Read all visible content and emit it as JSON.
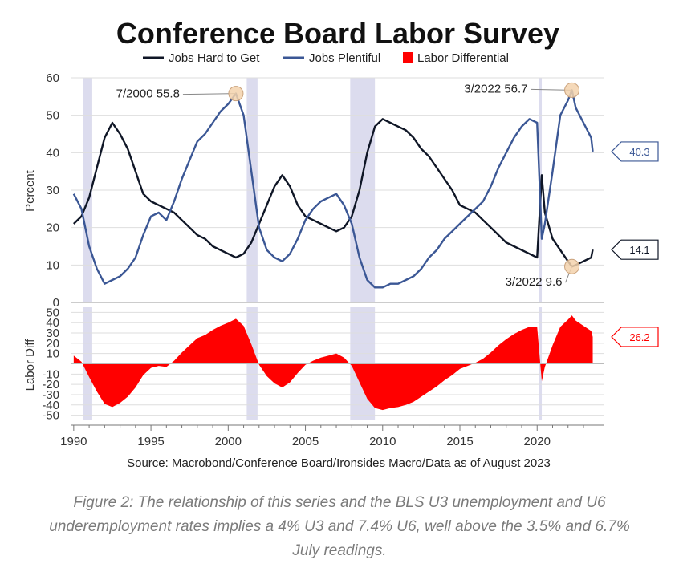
{
  "caption": "Figure 2: The relationship of this series and the BLS U3 unemployment and U6 underemployment rates implies a 4% U3 and 7.4% U6, well above the 3.5% and 6.7% July readings.",
  "chart_data": {
    "type": "line",
    "title": "Conference Board Labor Survey",
    "source": "Source: Macrobond/Conference Board/Ironsides Macro/Data as of August 2023",
    "colors": {
      "hard": "#0f1626",
      "plentiful": "#3b5795",
      "diff": "#ff0000",
      "recession": "#dcdcee",
      "annot_marker": "#f3d2ad"
    },
    "legend": {
      "placement": "top-center",
      "items": [
        "Jobs Hard to Get",
        "Jobs Plentiful",
        "Labor Differential"
      ]
    },
    "recessions": [
      [
        1990.6,
        1991.2
      ],
      [
        2001.2,
        2001.9
      ],
      [
        2007.9,
        2009.5
      ],
      [
        2020.1,
        2020.3
      ]
    ],
    "x_ticks": [
      "1990",
      "1995",
      "2000",
      "2005",
      "2010",
      "2015",
      "2020"
    ],
    "xlim": [
      1989.8,
      2024.3
    ],
    "top_panel": {
      "ylabel": "Percent",
      "ylim": [
        0,
        60
      ],
      "y_ticks": [
        "0",
        "10",
        "20",
        "30",
        "40",
        "50",
        "60"
      ],
      "grid": true,
      "series": [
        {
          "name": "Jobs Hard to Get",
          "x": [
            1990.0,
            1990.5,
            1991.0,
            1991.5,
            1992.0,
            1992.5,
            1993.0,
            1993.5,
            1994.0,
            1994.5,
            1995.0,
            1995.5,
            1996.0,
            1996.5,
            1997.0,
            1997.5,
            1998.0,
            1998.5,
            1999.0,
            1999.5,
            2000.0,
            2000.5,
            2001.0,
            2001.5,
            2002.0,
            2002.5,
            2003.0,
            2003.5,
            2004.0,
            2004.5,
            2005.0,
            2005.5,
            2006.0,
            2006.5,
            2007.0,
            2007.5,
            2008.0,
            2008.5,
            2009.0,
            2009.5,
            2010.0,
            2010.5,
            2011.0,
            2011.5,
            2012.0,
            2012.5,
            2013.0,
            2013.5,
            2014.0,
            2014.5,
            2015.0,
            2015.5,
            2016.0,
            2016.5,
            2017.0,
            2017.5,
            2018.0,
            2018.5,
            2019.0,
            2019.5,
            2020.0,
            2020.3,
            2020.5,
            2021.0,
            2021.5,
            2022.0,
            2022.25,
            2022.5,
            2023.0,
            2023.5,
            2023.6
          ],
          "y": [
            21,
            23,
            28,
            36,
            44,
            48,
            45,
            41,
            35,
            29,
            27,
            26,
            25,
            24,
            22,
            20,
            18,
            17,
            15,
            14,
            13,
            12,
            13,
            16,
            21,
            26,
            31,
            34,
            31,
            26,
            23,
            22,
            21,
            20,
            19,
            20,
            23,
            30,
            40,
            47,
            49,
            48,
            47,
            46,
            44,
            41,
            39,
            36,
            33,
            30,
            26,
            25,
            24,
            22,
            20,
            18,
            16,
            15,
            14,
            13,
            12,
            34,
            24,
            17,
            14,
            11,
            9.6,
            10,
            11,
            12,
            14.1
          ]
        },
        {
          "name": "Jobs Plentiful",
          "x": [
            1990.0,
            1990.5,
            1991.0,
            1991.5,
            1992.0,
            1992.5,
            1993.0,
            1993.5,
            1994.0,
            1994.5,
            1995.0,
            1995.5,
            1996.0,
            1996.5,
            1997.0,
            1997.5,
            1998.0,
            1998.5,
            1999.0,
            1999.5,
            2000.0,
            2000.5,
            2001.0,
            2001.5,
            2002.0,
            2002.5,
            2003.0,
            2003.5,
            2004.0,
            2004.5,
            2005.0,
            2005.5,
            2006.0,
            2006.5,
            2007.0,
            2007.5,
            2008.0,
            2008.5,
            2009.0,
            2009.5,
            2010.0,
            2010.5,
            2011.0,
            2011.5,
            2012.0,
            2012.5,
            2013.0,
            2013.5,
            2014.0,
            2014.5,
            2015.0,
            2015.5,
            2016.0,
            2016.5,
            2017.0,
            2017.5,
            2018.0,
            2018.5,
            2019.0,
            2019.5,
            2020.0,
            2020.3,
            2020.5,
            2021.0,
            2021.5,
            2022.0,
            2022.25,
            2022.5,
            2023.0,
            2023.5,
            2023.6
          ],
          "y": [
            29,
            25,
            15,
            9,
            5,
            6,
            7,
            9,
            12,
            18,
            23,
            24,
            22,
            27,
            33,
            38,
            43,
            45,
            48,
            51,
            53,
            55.8,
            50,
            35,
            20,
            14,
            12,
            11,
            13,
            17,
            22,
            25,
            27,
            28,
            29,
            26,
            21,
            12,
            6,
            4,
            4,
            5,
            5,
            6,
            7,
            9,
            12,
            14,
            17,
            19,
            21,
            23,
            25,
            27,
            31,
            36,
            40,
            44,
            47,
            49,
            48,
            17,
            21,
            35,
            50,
            54,
            56.7,
            52,
            48,
            44,
            40.3
          ]
        }
      ],
      "annotations": [
        {
          "label": "7/2000 55.8",
          "x": 2000.5,
          "y": 55.8
        },
        {
          "label": "3/2022 56.7",
          "x": 2022.25,
          "y": 56.7
        },
        {
          "label": "3/2022 9.6",
          "x": 2022.25,
          "y": 9.6
        }
      ],
      "end_values": [
        {
          "series": "Jobs Plentiful",
          "label": "40.3",
          "y": 40.3
        },
        {
          "series": "Jobs Hard to Get",
          "label": "14.1",
          "y": 14.1
        }
      ]
    },
    "bottom_panel": {
      "ylabel": "Labor Diff",
      "type": "area",
      "ylim": [
        -55,
        55
      ],
      "y_ticks": [
        "50",
        "40",
        "30",
        "20",
        "10",
        "-10",
        "-20",
        "-30",
        "-40",
        "-50"
      ],
      "series": [
        {
          "name": "Labor Differential",
          "x": [
            1990.0,
            1990.5,
            1991.0,
            1991.5,
            1992.0,
            1992.5,
            1993.0,
            1993.5,
            1994.0,
            1994.5,
            1995.0,
            1995.5,
            1996.0,
            1996.5,
            1997.0,
            1997.5,
            1998.0,
            1998.5,
            1999.0,
            1999.5,
            2000.0,
            2000.5,
            2001.0,
            2001.5,
            2002.0,
            2002.5,
            2003.0,
            2003.5,
            2004.0,
            2004.5,
            2005.0,
            2005.5,
            2006.0,
            2006.5,
            2007.0,
            2007.5,
            2008.0,
            2008.5,
            2009.0,
            2009.5,
            2010.0,
            2010.5,
            2011.0,
            2011.5,
            2012.0,
            2012.5,
            2013.0,
            2013.5,
            2014.0,
            2014.5,
            2015.0,
            2015.5,
            2016.0,
            2016.5,
            2017.0,
            2017.5,
            2018.0,
            2018.5,
            2019.0,
            2019.5,
            2020.0,
            2020.3,
            2020.5,
            2021.0,
            2021.5,
            2022.0,
            2022.25,
            2022.5,
            2023.0,
            2023.5,
            2023.6
          ],
          "values": [
            8,
            2,
            -13,
            -27,
            -39,
            -42,
            -38,
            -32,
            -23,
            -11,
            -4,
            -2,
            -3,
            3,
            11,
            18,
            25,
            28,
            33,
            37,
            40,
            43.8,
            37,
            19,
            -1,
            -12,
            -19,
            -23,
            -18,
            -9,
            -1,
            3,
            6,
            8,
            10,
            6,
            -2,
            -18,
            -34,
            -43,
            -45,
            -43,
            -42,
            -40,
            -37,
            -32,
            -27,
            -22,
            -16,
            -11,
            -5,
            -2,
            1,
            5,
            11,
            18,
            24,
            29,
            33,
            36,
            36,
            -17,
            -3,
            18,
            36,
            43,
            47.1,
            42,
            37,
            32,
            26.2
          ]
        }
      ],
      "end_values": [
        {
          "series": "Labor Differential",
          "label": "26.2",
          "y": 26.2
        }
      ]
    }
  }
}
